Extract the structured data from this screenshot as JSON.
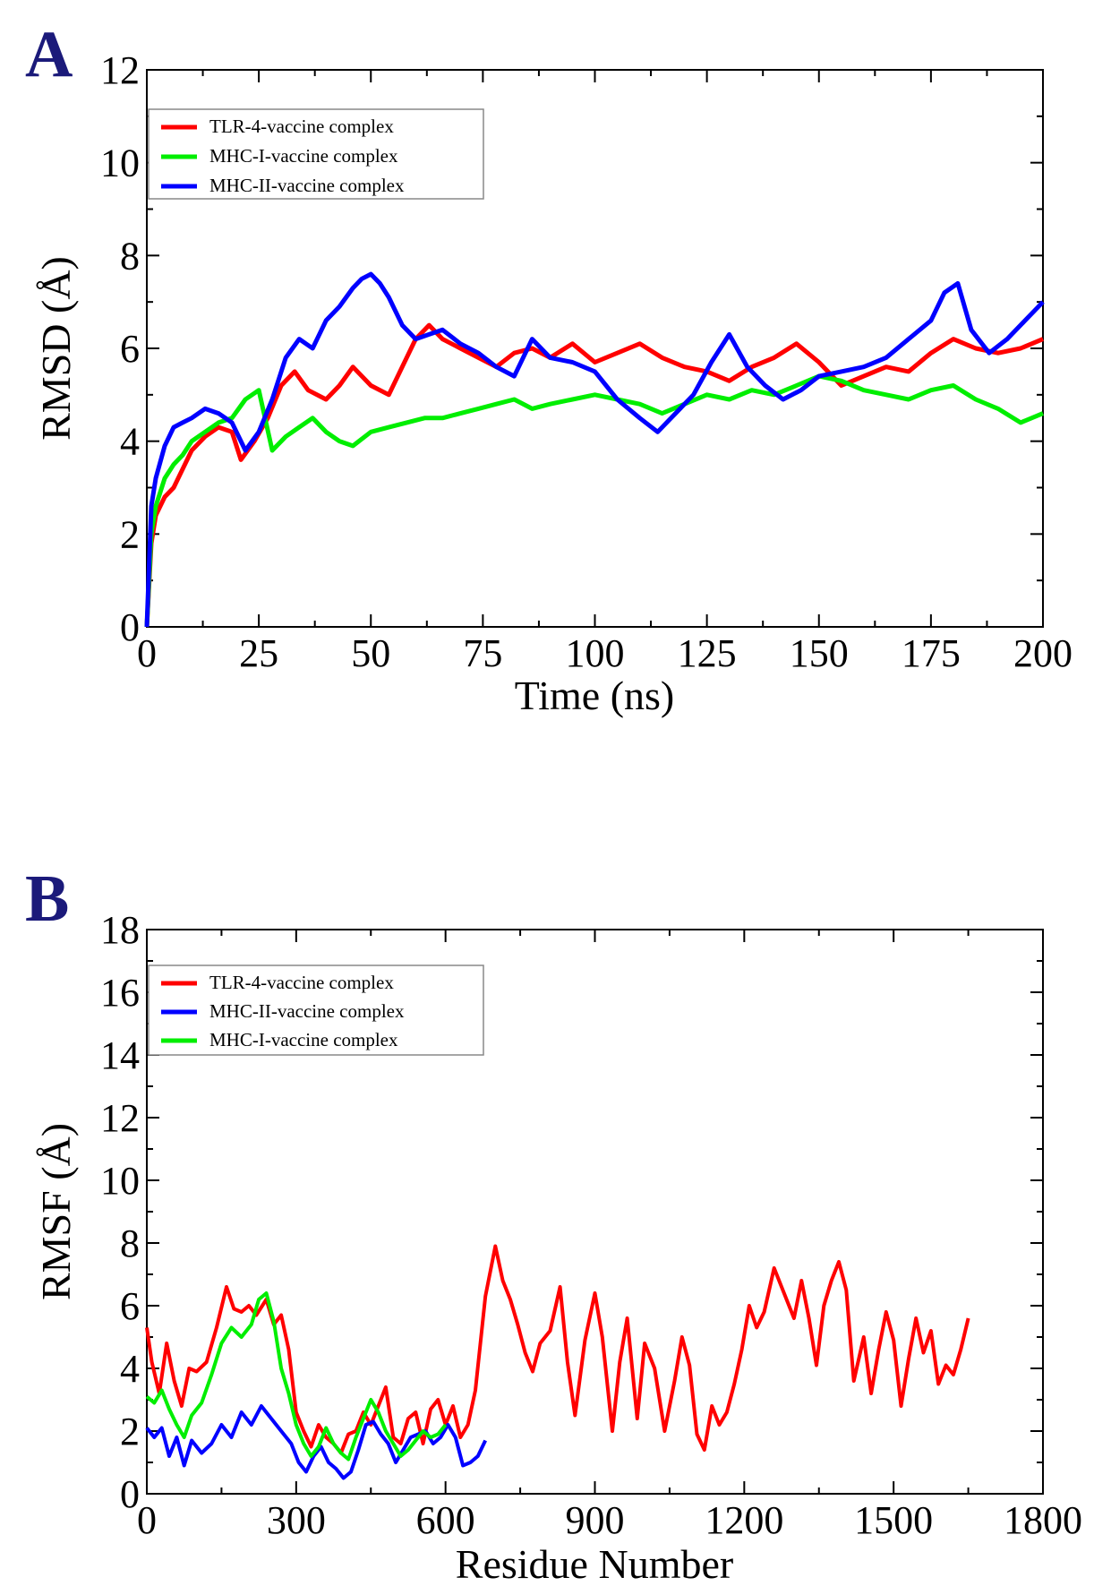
{
  "chart_data": [
    {
      "type": "line",
      "panel": "A",
      "title": "",
      "xlabel": "Time (ns)",
      "ylabel": "RMSD (Å)",
      "xlim": [
        0,
        200
      ],
      "ylim": [
        0,
        12
      ],
      "xticks": [
        0,
        25,
        50,
        75,
        100,
        125,
        150,
        175,
        200
      ],
      "yticks": [
        0,
        2,
        4,
        6,
        8,
        10,
        12
      ],
      "legend_position": "top-left",
      "series": [
        {
          "name": "TLR-4-vaccine complex",
          "color": "#ff0000",
          "x": [
            0,
            1,
            2,
            4,
            6,
            8,
            10,
            13,
            16,
            19,
            21,
            24,
            27,
            30,
            33,
            36,
            40,
            43,
            46,
            50,
            54,
            57,
            60,
            63,
            66,
            70,
            74,
            78,
            82,
            86,
            90,
            95,
            100,
            105,
            110,
            115,
            120,
            125,
            130,
            135,
            140,
            145,
            150,
            155,
            160,
            165,
            170,
            175,
            180,
            185,
            190,
            195,
            200
          ],
          "values": [
            0,
            1.8,
            2.4,
            2.8,
            3.0,
            3.4,
            3.8,
            4.1,
            4.3,
            4.2,
            3.6,
            4.0,
            4.5,
            5.2,
            5.5,
            5.1,
            4.9,
            5.2,
            5.6,
            5.2,
            5.0,
            5.6,
            6.2,
            6.5,
            6.2,
            6.0,
            5.8,
            5.6,
            5.9,
            6.0,
            5.8,
            6.1,
            5.7,
            5.9,
            6.1,
            5.8,
            5.6,
            5.5,
            5.3,
            5.6,
            5.8,
            6.1,
            5.7,
            5.2,
            5.4,
            5.6,
            5.5,
            5.9,
            6.2,
            6.0,
            5.9,
            6.0,
            6.2
          ]
        },
        {
          "name": "MHC-I-vaccine complex",
          "color": "#00ee00",
          "x": [
            0,
            1,
            2,
            4,
            6,
            8,
            10,
            13,
            16,
            19,
            22,
            25,
            28,
            31,
            34,
            37,
            40,
            43,
            46,
            50,
            54,
            58,
            62,
            66,
            70,
            74,
            78,
            82,
            86,
            90,
            95,
            100,
            105,
            110,
            115,
            120,
            125,
            130,
            135,
            140,
            145,
            150,
            155,
            160,
            165,
            170,
            175,
            180,
            185,
            190,
            195,
            200
          ],
          "values": [
            0,
            2.0,
            2.6,
            3.2,
            3.5,
            3.7,
            4.0,
            4.2,
            4.4,
            4.5,
            4.9,
            5.1,
            3.8,
            4.1,
            4.3,
            4.5,
            4.2,
            4.0,
            3.9,
            4.2,
            4.3,
            4.4,
            4.5,
            4.5,
            4.6,
            4.7,
            4.8,
            4.9,
            4.7,
            4.8,
            4.9,
            5.0,
            4.9,
            4.8,
            4.6,
            4.8,
            5.0,
            4.9,
            5.1,
            5.0,
            5.2,
            5.4,
            5.3,
            5.1,
            5.0,
            4.9,
            5.1,
            5.2,
            4.9,
            4.7,
            4.4,
            4.6
          ]
        },
        {
          "name": "MHC-II-vaccine complex",
          "color": "#0000ff",
          "x": [
            0,
            1,
            2,
            4,
            6,
            8,
            10,
            13,
            16,
            19,
            22,
            25,
            28,
            31,
            34,
            37,
            40,
            43,
            46,
            48,
            50,
            52,
            54,
            57,
            60,
            63,
            66,
            70,
            74,
            78,
            82,
            86,
            90,
            95,
            100,
            105,
            110,
            114,
            118,
            122,
            126,
            130,
            134,
            138,
            142,
            146,
            150,
            155,
            160,
            165,
            170,
            175,
            178,
            181,
            184,
            188,
            192,
            196,
            200
          ],
          "values": [
            0,
            2.6,
            3.2,
            3.9,
            4.3,
            4.4,
            4.5,
            4.7,
            4.6,
            4.4,
            3.8,
            4.2,
            4.9,
            5.8,
            6.2,
            6.0,
            6.6,
            6.9,
            7.3,
            7.5,
            7.6,
            7.4,
            7.1,
            6.5,
            6.2,
            6.3,
            6.4,
            6.1,
            5.9,
            5.6,
            5.4,
            6.2,
            5.8,
            5.7,
            5.5,
            4.9,
            4.5,
            4.2,
            4.6,
            5.0,
            5.7,
            6.3,
            5.6,
            5.2,
            4.9,
            5.1,
            5.4,
            5.5,
            5.6,
            5.8,
            6.2,
            6.6,
            7.2,
            7.4,
            6.4,
            5.9,
            6.2,
            6.6,
            7.0
          ]
        }
      ]
    },
    {
      "type": "line",
      "panel": "B",
      "title": "",
      "xlabel": "Residue Number",
      "ylabel": "RMSF (Å)",
      "xlim": [
        0,
        1800
      ],
      "ylim": [
        0,
        18
      ],
      "xticks": [
        0,
        300,
        600,
        900,
        1200,
        1500,
        1800
      ],
      "yticks": [
        0,
        2,
        4,
        6,
        8,
        10,
        12,
        14,
        16,
        18
      ],
      "legend_position": "top-left",
      "series": [
        {
          "name": "TLR-4-vaccine complex",
          "color": "#ff0000",
          "x": [
            0,
            10,
            25,
            40,
            55,
            70,
            85,
            100,
            120,
            140,
            160,
            175,
            190,
            205,
            220,
            240,
            255,
            270,
            285,
            300,
            315,
            330,
            345,
            360,
            375,
            390,
            405,
            420,
            435,
            450,
            465,
            480,
            495,
            510,
            525,
            540,
            555,
            570,
            585,
            600,
            615,
            630,
            645,
            660,
            680,
            700,
            715,
            730,
            745,
            760,
            775,
            790,
            810,
            830,
            845,
            860,
            880,
            900,
            915,
            935,
            950,
            965,
            985,
            1000,
            1020,
            1040,
            1060,
            1075,
            1090,
            1105,
            1120,
            1135,
            1150,
            1165,
            1180,
            1195,
            1210,
            1225,
            1240,
            1260,
            1280,
            1300,
            1315,
            1330,
            1345,
            1360,
            1375,
            1390,
            1405,
            1420,
            1440,
            1455,
            1470,
            1485,
            1500,
            1515,
            1530,
            1545,
            1560,
            1575,
            1590,
            1605,
            1620,
            1635,
            1650
          ],
          "values": [
            5.3,
            4.2,
            3.2,
            4.8,
            3.6,
            2.8,
            4.0,
            3.9,
            4.2,
            5.3,
            6.6,
            5.9,
            5.8,
            6.0,
            5.7,
            6.2,
            5.4,
            5.7,
            4.6,
            2.6,
            2.0,
            1.5,
            2.2,
            1.8,
            1.6,
            1.3,
            1.9,
            2.0,
            2.6,
            2.2,
            2.8,
            3.4,
            1.8,
            1.6,
            2.4,
            2.6,
            1.6,
            2.7,
            3.0,
            2.2,
            2.8,
            1.8,
            2.2,
            3.3,
            6.3,
            7.9,
            6.8,
            6.2,
            5.4,
            4.5,
            3.9,
            4.8,
            5.2,
            6.6,
            4.2,
            2.5,
            4.9,
            6.4,
            5.0,
            2.0,
            4.2,
            5.6,
            2.4,
            4.8,
            4.0,
            2.0,
            3.6,
            5.0,
            4.1,
            1.9,
            1.4,
            2.8,
            2.2,
            2.6,
            3.5,
            4.6,
            6.0,
            5.3,
            5.8,
            7.2,
            6.4,
            5.6,
            6.8,
            5.6,
            4.1,
            6.0,
            6.8,
            7.4,
            6.5,
            3.6,
            5.0,
            3.2,
            4.6,
            5.8,
            4.9,
            2.8,
            4.3,
            5.6,
            4.5,
            5.2,
            3.5,
            4.1,
            3.8,
            4.6,
            5.6
          ]
        },
        {
          "name": "MHC-II-vaccine complex",
          "color": "#0000ff",
          "x": [
            0,
            15,
            30,
            45,
            60,
            75,
            90,
            110,
            130,
            150,
            170,
            190,
            210,
            230,
            250,
            270,
            290,
            305,
            320,
            335,
            350,
            365,
            380,
            395,
            410,
            425,
            440,
            455,
            470,
            485,
            500,
            515,
            530,
            545,
            560,
            575,
            590,
            605,
            620,
            635,
            650,
            665,
            680
          ],
          "values": [
            2.1,
            1.8,
            2.1,
            1.2,
            1.8,
            0.9,
            1.7,
            1.3,
            1.6,
            2.2,
            1.8,
            2.6,
            2.2,
            2.8,
            2.4,
            2.0,
            1.6,
            1.0,
            0.7,
            1.2,
            1.5,
            1.0,
            0.8,
            0.5,
            0.7,
            1.4,
            2.2,
            2.3,
            1.9,
            1.6,
            1.0,
            1.4,
            1.8,
            1.9,
            2.0,
            1.6,
            1.8,
            2.2,
            1.8,
            0.9,
            1.0,
            1.2,
            1.7
          ]
        },
        {
          "name": "MHC-I-vaccine complex",
          "color": "#00ee00",
          "x": [
            0,
            15,
            30,
            45,
            60,
            75,
            90,
            110,
            130,
            150,
            170,
            190,
            210,
            225,
            240,
            255,
            270,
            285,
            300,
            315,
            330,
            345,
            360,
            375,
            390,
            405,
            420,
            435,
            450,
            465,
            480,
            495,
            510,
            525,
            540,
            555,
            570,
            585,
            600
          ],
          "values": [
            3.1,
            2.9,
            3.3,
            2.7,
            2.2,
            1.8,
            2.5,
            2.9,
            3.8,
            4.8,
            5.3,
            5.0,
            5.4,
            6.2,
            6.4,
            5.5,
            4.0,
            3.2,
            2.2,
            1.6,
            1.2,
            1.5,
            2.1,
            1.6,
            1.3,
            1.1,
            1.8,
            2.4,
            3.0,
            2.6,
            2.0,
            1.6,
            1.2,
            1.4,
            1.7,
            2.0,
            1.8,
            1.9,
            2.2
          ]
        }
      ]
    }
  ]
}
